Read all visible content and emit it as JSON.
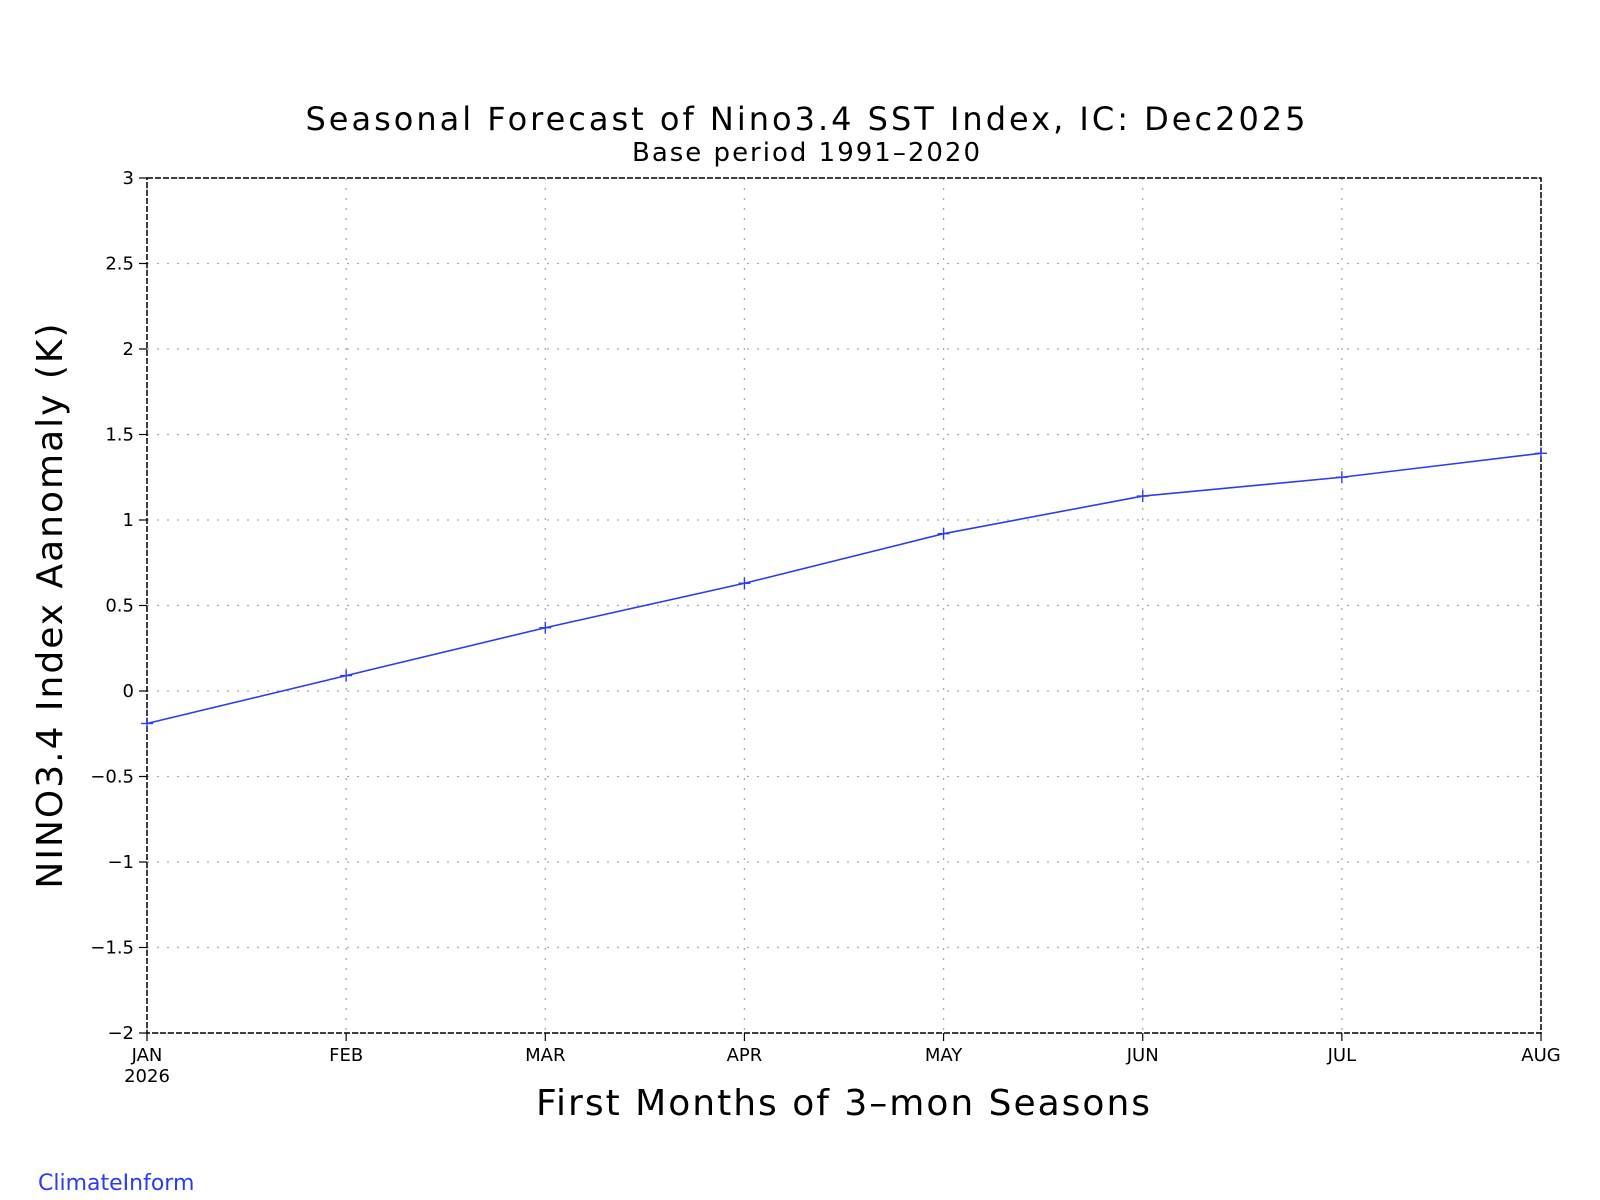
{
  "chart_data": {
    "type": "line",
    "title": "Seasonal Forecast of Nino3.4 SST Index, IC: Dec2025",
    "subtitle": "Base period 1991–2020",
    "xlabel": "First Months of 3–mon Seasons",
    "ylabel": "NINO3.4 Index Aanomaly (K)",
    "categories": [
      "JAN",
      "FEB",
      "MAR",
      "APR",
      "MAY",
      "JUN",
      "JUL",
      "AUG"
    ],
    "x_year_label": "2026",
    "y_ticks": [
      3,
      2.5,
      2,
      1.5,
      1,
      0.5,
      0,
      -0.5,
      -1,
      -1.5,
      -2
    ],
    "y_tick_labels": [
      "3",
      "2.5",
      "2",
      "1.5",
      "1",
      "0.5",
      "0",
      "−0.5",
      "−1",
      "−1.5",
      "−2"
    ],
    "ylim": [
      -2,
      3
    ],
    "grid": true,
    "series": [
      {
        "values": [
          -0.19,
          0.09,
          0.37,
          0.63,
          0.92,
          1.14,
          1.25,
          1.39
        ]
      }
    ],
    "colors": {
      "series": "#2b3cf5",
      "credit": "#2b3cf5",
      "grid": "#aaaaaa",
      "frame": "#000000"
    }
  },
  "credit": "ClimateInform"
}
